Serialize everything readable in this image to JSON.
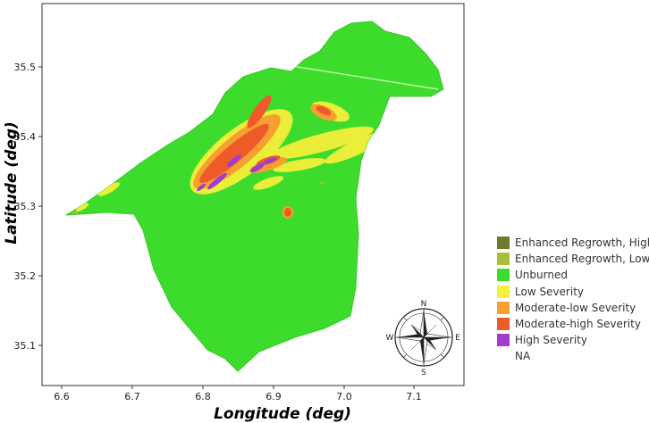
{
  "map": {
    "xlabel": "Longitude (deg)",
    "ylabel": "Latitude (deg)",
    "x_ticks": [
      "6.6",
      "6.7",
      "6.8",
      "6.9",
      "7.0",
      "7.1"
    ],
    "y_ticks": [
      "35.5",
      "35.4",
      "35.3",
      "35.2",
      "35.1"
    ],
    "xlim": [
      6.6,
      7.1
    ],
    "ylim": [
      35.1,
      35.5
    ],
    "compass": {
      "n": "N",
      "s": "S",
      "e": "E",
      "w": "W"
    }
  },
  "legend": [
    {
      "label": "Enhanced Regrowth, High",
      "color": "#6f7a2c"
    },
    {
      "label": "Enhanced Regrowth, Low",
      "color": "#a8bf3a"
    },
    {
      "label": "Unburned",
      "color": "#3ddc2c"
    },
    {
      "label": "Low Severity",
      "color": "#f5f03a"
    },
    {
      "label": "Moderate-low Severity",
      "color": "#f5a02f"
    },
    {
      "label": "Moderate-high Severity",
      "color": "#ef5a2a"
    },
    {
      "label": "High Severity",
      "color": "#a23ccf"
    },
    {
      "label": "NA",
      "color": ""
    }
  ]
}
